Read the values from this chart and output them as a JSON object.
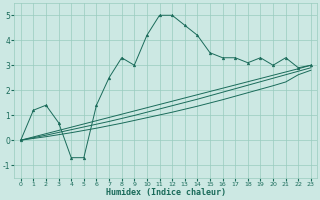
{
  "xlabel": "Humidex (Indice chaleur)",
  "xlim": [
    -0.5,
    23.5
  ],
  "ylim": [
    -1.5,
    5.5
  ],
  "xticks": [
    0,
    1,
    2,
    3,
    4,
    5,
    6,
    7,
    8,
    9,
    10,
    11,
    12,
    13,
    14,
    15,
    16,
    17,
    18,
    19,
    20,
    21,
    22,
    23
  ],
  "yticks": [
    -1,
    0,
    1,
    2,
    3,
    4,
    5
  ],
  "bg_color": "#cce8e3",
  "grid_color": "#99ccbf",
  "line_color": "#1a6b5a",
  "main_series": [
    0.0,
    1.2,
    1.4,
    0.7,
    -0.7,
    -0.7,
    1.4,
    2.5,
    3.3,
    3.0,
    4.2,
    5.0,
    5.0,
    4.6,
    4.2,
    3.5,
    3.3,
    3.3,
    3.1,
    3.3,
    3.0,
    3.3,
    2.9,
    3.0
  ],
  "line1": [
    0.0,
    0.13,
    0.26,
    0.39,
    0.52,
    0.65,
    0.78,
    0.91,
    1.04,
    1.17,
    1.3,
    1.43,
    1.56,
    1.69,
    1.82,
    1.95,
    2.08,
    2.21,
    2.34,
    2.47,
    2.6,
    2.73,
    2.86,
    3.0
  ],
  "line2": [
    0.0,
    0.1,
    0.2,
    0.31,
    0.42,
    0.53,
    0.64,
    0.75,
    0.87,
    0.99,
    1.12,
    1.25,
    1.38,
    1.51,
    1.64,
    1.78,
    1.92,
    2.06,
    2.2,
    2.34,
    2.48,
    2.62,
    2.76,
    2.9
  ],
  "line3": [
    0.0,
    0.07,
    0.14,
    0.22,
    0.3,
    0.39,
    0.48,
    0.58,
    0.68,
    0.79,
    0.9,
    1.01,
    1.12,
    1.24,
    1.36,
    1.49,
    1.62,
    1.76,
    1.9,
    2.04,
    2.18,
    2.33,
    2.62,
    2.8
  ]
}
